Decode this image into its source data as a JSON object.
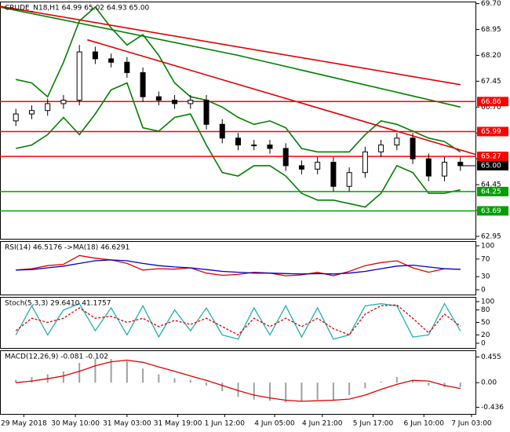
{
  "chart_data": [
    {
      "type": "candlestick",
      "title": "CRUDE_N18,H1  64.99 65.02 64.93 65.00",
      "xlim": [
        0,
        60
      ],
      "xticks": [
        {
          "value": 3,
          "label": "29 May 2018"
        },
        {
          "value": 9.5,
          "label": "30 May 10:00"
        },
        {
          "value": 16,
          "label": "31 May 03:00"
        },
        {
          "value": 22.4,
          "label": "31 May 19:00"
        },
        {
          "value": 28.3,
          "label": "1 Jun 12:00"
        },
        {
          "value": 34.6,
          "label": "4 Jun 05:00"
        },
        {
          "value": 40.6,
          "label": "4 Jun 21:00"
        },
        {
          "value": 47,
          "label": "5 Jun 17:00"
        },
        {
          "value": 53.4,
          "label": "6 Jun 10:00"
        },
        {
          "value": 59.4,
          "label": "7 Jun 03:00"
        }
      ],
      "ylim": [
        62.88,
        69.76
      ],
      "yticks": [
        {
          "value": 69.7,
          "label": "69.70"
        },
        68.95,
        {
          "value": 68.2,
          "label": "68.20"
        },
        67.45,
        {
          "value": 66.7,
          "label": "66.70"
        },
        65.95,
        {
          "value": 65.2,
          "label": "65.20"
        },
        64.45,
        {
          "value": 63.7,
          "label": "63.70"
        },
        62.95
      ],
      "x": [
        2,
        4,
        6,
        8,
        10,
        12,
        14,
        16,
        18,
        20,
        22,
        24,
        26,
        28,
        30,
        32,
        34,
        36,
        38,
        40,
        42,
        44,
        46,
        48,
        50,
        52,
        54,
        56,
        58
      ],
      "open": [
        66.3,
        66.5,
        66.6,
        66.8,
        66.9,
        68.3,
        68.1,
        68.0,
        67.7,
        67.0,
        66.9,
        66.8,
        66.9,
        66.2,
        65.8,
        65.6,
        65.6,
        65.5,
        65.0,
        64.9,
        65.1,
        64.4,
        64.8,
        65.4,
        65.6,
        65.8,
        65.2,
        64.7,
        65.1
      ],
      "high": [
        66.65,
        66.75,
        66.95,
        67.05,
        68.5,
        68.45,
        68.25,
        68.15,
        67.85,
        67.15,
        67.05,
        67.05,
        67.05,
        66.35,
        65.95,
        65.75,
        65.75,
        65.65,
        65.15,
        65.25,
        65.25,
        64.95,
        65.55,
        65.75,
        65.95,
        65.95,
        65.35,
        65.25,
        65.25
      ],
      "low": [
        66.15,
        66.35,
        66.45,
        66.65,
        66.75,
        67.95,
        67.85,
        67.55,
        66.85,
        66.75,
        66.65,
        66.65,
        66.05,
        65.65,
        65.45,
        65.45,
        65.35,
        64.85,
        64.75,
        64.75,
        64.25,
        64.25,
        64.65,
        65.25,
        65.45,
        65.05,
        64.55,
        64.55,
        64.85
      ],
      "close": [
        66.5,
        66.6,
        66.8,
        66.9,
        68.3,
        68.1,
        68.0,
        67.7,
        67.0,
        66.9,
        66.8,
        66.9,
        66.2,
        65.8,
        65.6,
        65.6,
        65.5,
        65.0,
        64.9,
        65.1,
        64.4,
        64.8,
        65.4,
        65.6,
        65.8,
        65.2,
        64.7,
        65.1,
        65.0
      ],
      "bands": [
        {
          "color": "#008000",
          "values": [
            67.5,
            67.4,
            67.0,
            68.0,
            69.2,
            69.6,
            69.0,
            68.5,
            68.8,
            68.2,
            67.4,
            67.0,
            66.9,
            66.7,
            66.4,
            66.2,
            66.3,
            66.1,
            65.5,
            65.4,
            65.4,
            65.4,
            65.9,
            66.3,
            66.2,
            66.0,
            65.8,
            65.7,
            65.4
          ]
        },
        {
          "color": "#008000",
          "values": [
            65.5,
            65.6,
            65.9,
            66.4,
            65.9,
            66.5,
            67.2,
            67.4,
            66.1,
            66.0,
            66.4,
            66.5,
            65.6,
            64.8,
            64.7,
            65.0,
            65.0,
            64.7,
            64.2,
            64.0,
            64.0,
            63.9,
            63.8,
            64.2,
            65.0,
            64.8,
            64.2,
            64.2,
            64.3
          ]
        }
      ],
      "trendlines": [
        {
          "color": "#008000",
          "x": [
            0,
            30,
            58
          ],
          "values": [
            69.6,
            68.2,
            66.7
          ]
        },
        {
          "color": "#e00000",
          "x": [
            0,
            58
          ],
          "values": [
            69.62,
            67.35
          ]
        },
        {
          "color": "#e00000",
          "x": [
            11,
            60
          ],
          "values": [
            68.65,
            65.32
          ]
        }
      ],
      "levels": [
        {
          "value": 66.86,
          "color": "#ff0000"
        },
        {
          "value": 65.99,
          "color": "#ff0000"
        },
        {
          "value": 65.27,
          "color": "#ff0000"
        },
        {
          "value": 64.25,
          "color": "#00a000"
        },
        {
          "value": 63.69,
          "color": "#00a000"
        }
      ],
      "last_price": {
        "value": 65,
        "label": "65.00"
      }
    },
    {
      "type": "line",
      "title": "RSI(14) 46.5176  ->MA(18) 46.6291",
      "ylim": [
        0,
        100
      ],
      "yticks": [
        100,
        70,
        30,
        0
      ],
      "series": [
        {
          "color": "#e00000",
          "values": [
            45,
            48,
            55,
            58,
            78,
            72,
            68,
            60,
            45,
            48,
            47,
            50,
            38,
            33,
            35,
            40,
            38,
            32,
            34,
            40,
            32,
            42,
            55,
            62,
            66,
            50,
            40,
            48,
            46.5
          ]
        },
        {
          "color": "#0000c0",
          "values": [
            45,
            46,
            50,
            54,
            60,
            66,
            68,
            66,
            60,
            55,
            52,
            50,
            46,
            42,
            40,
            38,
            38,
            37,
            36,
            37,
            36,
            38,
            42,
            48,
            54,
            56,
            52,
            48,
            46.6
          ]
        }
      ]
    },
    {
      "type": "line",
      "title": "Stoch(5,3,3) 29.6410 41.1757",
      "ylim": [
        0,
        100
      ],
      "yticks": [
        100,
        80,
        50,
        20,
        0
      ],
      "series": [
        {
          "color": "#20b2aa",
          "values": [
            20,
            90,
            20,
            80,
            95,
            30,
            85,
            20,
            90,
            15,
            80,
            30,
            85,
            20,
            10,
            85,
            20,
            90,
            15,
            85,
            10,
            20,
            90,
            95,
            90,
            15,
            20,
            95,
            29.6
          ]
        },
        {
          "color": "#e00000",
          "dash": true,
          "values": [
            30,
            60,
            50,
            60,
            85,
            60,
            65,
            50,
            60,
            40,
            55,
            45,
            60,
            40,
            20,
            60,
            40,
            60,
            40,
            60,
            35,
            20,
            70,
            90,
            92,
            60,
            25,
            70,
            41.2
          ]
        }
      ]
    },
    {
      "type": "macd",
      "title": "MACD(12,26,9) -0.081 -0.102",
      "ylim": [
        -0.47,
        0.49
      ],
      "yticks": [
        0.455,
        {
          "value": 0,
          "label": "0.00"
        },
        -0.436
      ],
      "series": [
        {
          "kind": "bar",
          "color": "#a0a0a0",
          "values": [
            0.05,
            0.1,
            0.15,
            0.2,
            0.35,
            0.42,
            0.42,
            0.38,
            0.25,
            0.15,
            0.08,
            0.05,
            -0.05,
            -0.15,
            -0.25,
            -0.3,
            -0.32,
            -0.35,
            -0.33,
            -0.3,
            -0.32,
            -0.22,
            -0.1,
            0.02,
            0.1,
            0.05,
            -0.05,
            -0.08,
            -0.081
          ]
        },
        {
          "kind": "line",
          "color": "#e00000",
          "values": [
            0,
            0.03,
            0.07,
            0.12,
            0.2,
            0.3,
            0.37,
            0.4,
            0.36,
            0.28,
            0.2,
            0.12,
            0.04,
            -0.05,
            -0.14,
            -0.22,
            -0.27,
            -0.31,
            -0.33,
            -0.32,
            -0.31,
            -0.29,
            -0.22,
            -0.12,
            -0.03,
            0.04,
            0.03,
            -0.05,
            -0.102
          ]
        }
      ]
    }
  ]
}
